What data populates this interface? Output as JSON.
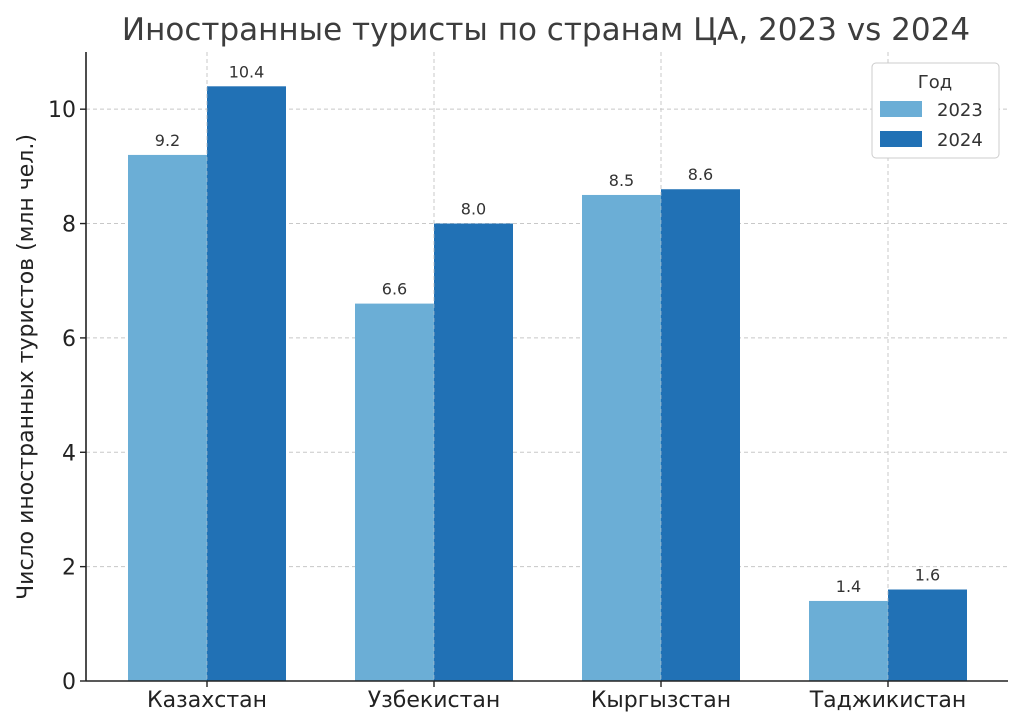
{
  "chart_data": {
    "type": "bar",
    "title": "Иностранные туристы по странам ЦА, 2023 vs 2024",
    "xlabel": "",
    "ylabel": "Число иностранных туристов (млн чел.)",
    "categories": [
      "Казахстан",
      "Узбекистан",
      "Кыргызстан",
      "Таджикистан"
    ],
    "series": [
      {
        "name": "2023",
        "values": [
          9.2,
          6.6,
          8.5,
          1.4
        ],
        "color": "#6baed6"
      },
      {
        "name": "2024",
        "values": [
          10.4,
          8.0,
          8.6,
          1.6
        ],
        "color": "#2171b5"
      }
    ],
    "ylim": [
      0,
      11
    ],
    "yticks": [
      0,
      2,
      4,
      6,
      8,
      10
    ],
    "data_labels": [
      [
        "9.2",
        "6.6",
        "8.5",
        "1.4"
      ],
      [
        "10.4",
        "8.0",
        "8.6",
        "1.6"
      ]
    ],
    "grid": true,
    "legend": {
      "title": "Год",
      "placement": "top-right"
    }
  }
}
